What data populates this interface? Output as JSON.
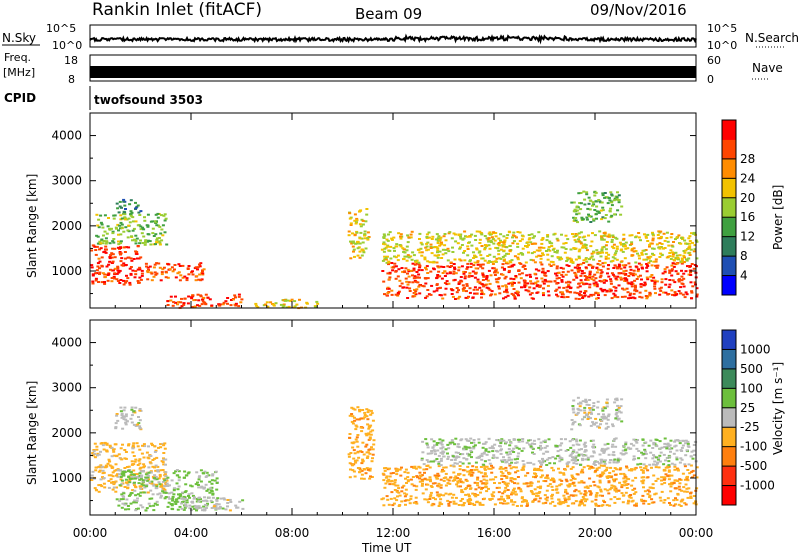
{
  "header": {
    "station": "Rankin Inlet (fitACF)",
    "beam": "Beam 09",
    "date": "09/Nov/2016"
  },
  "strips": {
    "nsky_label": "N.Sky",
    "nsearch_label": "N.Search",
    "noise_ticks": [
      "10^5",
      "10^0"
    ],
    "freq_label_top": "Freq.",
    "freq_label_unit": "[MHz]",
    "freq_ticks": [
      "18",
      "8"
    ],
    "nave_label": "Nave",
    "nave_ticks": [
      "60",
      "0"
    ],
    "cpid_label": "CPID",
    "cpid_value": "twofsound 3503"
  },
  "axes": {
    "ylabel": "Slant Range [km]",
    "xlabel": "Time UT",
    "y_ticks": [
      "1000",
      "2000",
      "3000",
      "4000"
    ],
    "x_ticks": [
      "00:00",
      "04:00",
      "08:00",
      "12:00",
      "16:00",
      "20:00",
      "00:00"
    ]
  },
  "power_scale": {
    "label": "Power [dB]",
    "ticks": [
      "4",
      "8",
      "12",
      "16",
      "20",
      "24",
      "28"
    ],
    "colors": [
      "#0000ff",
      "#1f4fb3",
      "#2e7d5b",
      "#3fa040",
      "#9acd32",
      "#f2c200",
      "#ff8c00",
      "#ff4500",
      "#ff0000"
    ]
  },
  "velocity_scale": {
    "label": "Velocity [m s⁻¹]",
    "ticks": [
      "1000",
      "500",
      "100",
      "25",
      "-25",
      "-100",
      "-500",
      "-1000"
    ],
    "colors": [
      "#2040c0",
      "#2e6fa0",
      "#3c8a5a",
      "#6cbf3c",
      "#bbbbbb",
      "#ffb020",
      "#ff7f0e",
      "#ff3010",
      "#ff0000"
    ]
  },
  "chart_data": {
    "type": "heatmap",
    "title": "Rankin Inlet (fitACF)",
    "xlabel": "Time UT",
    "ylabel": "Slant Range [km]",
    "xlim": [
      "00:00",
      "00:00"
    ],
    "ylim": [
      180,
      4500
    ],
    "panels": [
      {
        "name": "Power [dB]",
        "scale": [
          0,
          30
        ],
        "regions": [
          {
            "t": [
              0.0,
              2.0
            ],
            "r": [
              700,
              1600
            ],
            "value": 28
          },
          {
            "t": [
              2.0,
              4.5
            ],
            "r": [
              800,
              1200
            ],
            "value": 26
          },
          {
            "t": [
              3.0,
              6.0
            ],
            "r": [
              200,
              500
            ],
            "value": 27
          },
          {
            "t": [
              0.2,
              3.0
            ],
            "r": [
              1600,
              2300
            ],
            "value": 14
          },
          {
            "t": [
              1.0,
              2.0
            ],
            "r": [
              2300,
              2600
            ],
            "value": 8
          },
          {
            "t": [
              6.5,
              9.0
            ],
            "r": [
              200,
              400
            ],
            "value": 18
          },
          {
            "t": [
              10.2,
              11.0
            ],
            "r": [
              1300,
              2400
            ],
            "value": 18
          },
          {
            "t": [
              11.5,
              24.0
            ],
            "r": [
              400,
              1200
            ],
            "value": 27
          },
          {
            "t": [
              11.5,
              24.0
            ],
            "r": [
              1200,
              1900
            ],
            "value": 18
          },
          {
            "t": [
              19.0,
              21.0
            ],
            "r": [
              2100,
              2800
            ],
            "value": 13
          }
        ]
      },
      {
        "name": "Velocity [m s⁻¹]",
        "scale": [
          -1000,
          1000
        ],
        "regions": [
          {
            "t": [
              0.0,
              3.0
            ],
            "r": [
              700,
              1800
            ],
            "value": -200
          },
          {
            "t": [
              1.0,
              5.0
            ],
            "r": [
              300,
              1200
            ],
            "value": 150
          },
          {
            "t": [
              3.5,
              6.0
            ],
            "r": [
              300,
              600
            ],
            "value": 0
          },
          {
            "t": [
              0.8,
              2.0
            ],
            "r": [
              2100,
              2600
            ],
            "value": 0
          },
          {
            "t": [
              10.2,
              11.2
            ],
            "r": [
              1000,
              2600
            ],
            "value": -300
          },
          {
            "t": [
              11.5,
              24.0
            ],
            "r": [
              400,
              1300
            ],
            "value": -300
          },
          {
            "t": [
              13.0,
              24.0
            ],
            "r": [
              1300,
              1900
            ],
            "value": 50
          },
          {
            "t": [
              19.0,
              21.0
            ],
            "r": [
              2100,
              2800
            ],
            "value": 0
          }
        ]
      }
    ]
  }
}
